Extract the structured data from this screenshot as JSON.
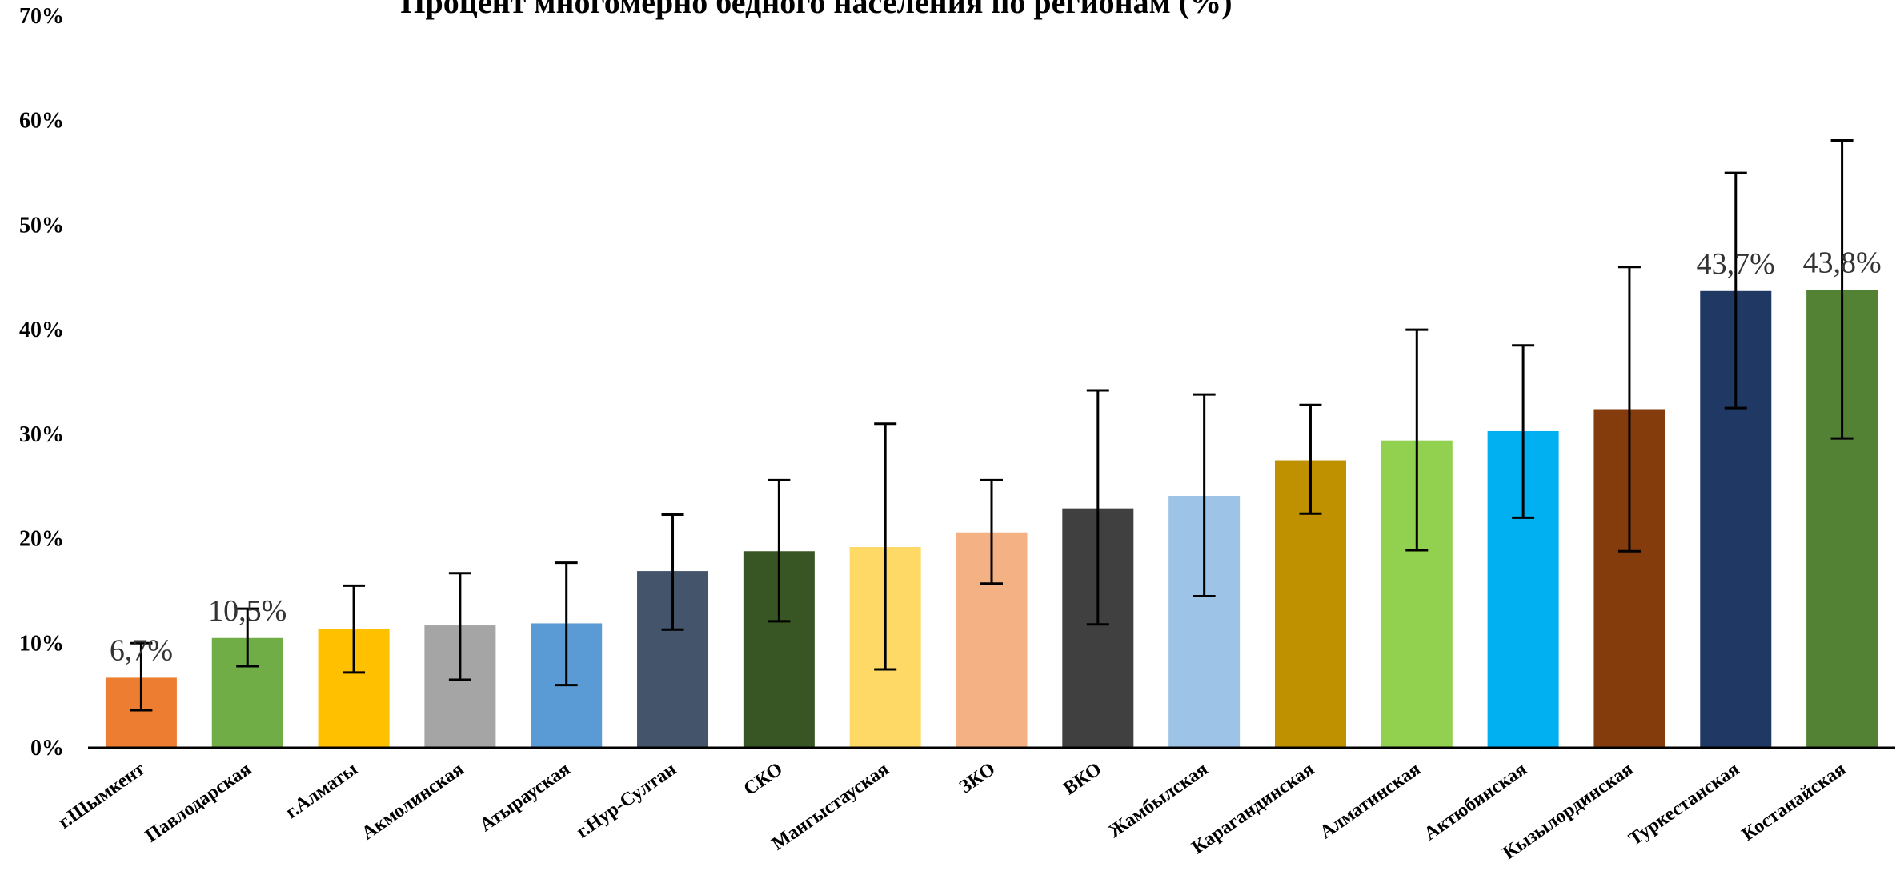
{
  "chart_data": {
    "type": "bar",
    "title": "Процент многомерно бедного населения по регионам (%)",
    "xlabel": "",
    "ylabel": "",
    "ylim": [
      0,
      70
    ],
    "y_ticks": [
      "0%",
      "10%",
      "20%",
      "30%",
      "40%",
      "50%",
      "60%",
      "70%"
    ],
    "y_tick_values": [
      0,
      10,
      20,
      30,
      40,
      50,
      60,
      70
    ],
    "grid": false,
    "legend": "none",
    "categories": [
      "г.Шымкент",
      "Павлодарская",
      "г.Алматы",
      "Акмолинская",
      "Атырауская",
      "г.Нур-Султан",
      "СКО",
      "Мангыстауская",
      "ЗКО",
      "ВКО",
      "Жамбылская",
      "Карагандинская",
      "Алматинская",
      "Актюбинская",
      "Кызылординская",
      "Туркестанская",
      "Костанайская"
    ],
    "values": [
      6.7,
      10.5,
      11.4,
      11.7,
      11.9,
      16.9,
      18.8,
      19.2,
      20.6,
      22.9,
      24.1,
      27.5,
      29.4,
      30.3,
      32.4,
      43.7,
      43.8
    ],
    "error_low": [
      3.6,
      7.8,
      7.2,
      6.5,
      6.0,
      11.3,
      12.1,
      7.5,
      15.7,
      11.8,
      14.5,
      22.4,
      18.9,
      22.0,
      18.8,
      32.5,
      29.6
    ],
    "error_high": [
      10.0,
      13.3,
      15.5,
      16.7,
      17.7,
      22.3,
      25.6,
      31.0,
      25.6,
      34.2,
      33.8,
      32.8,
      40.0,
      38.5,
      46.0,
      55.0,
      58.1
    ],
    "colors": [
      "#ED7D31",
      "#70AD47",
      "#FFC000",
      "#A5A5A5",
      "#5B9BD5",
      "#44546A",
      "#375623",
      "#FFD966",
      "#F4B183",
      "#404040",
      "#9DC3E6",
      "#BF9000",
      "#92D050",
      "#00B0F0",
      "#843C0C",
      "#1F3864",
      "#548235"
    ],
    "data_labels": [
      {
        "index": 0,
        "text": "6,7%"
      },
      {
        "index": 1,
        "text": "10,5%"
      },
      {
        "index": 15,
        "text": "43,7%"
      },
      {
        "index": 16,
        "text": "43,8%"
      }
    ]
  }
}
